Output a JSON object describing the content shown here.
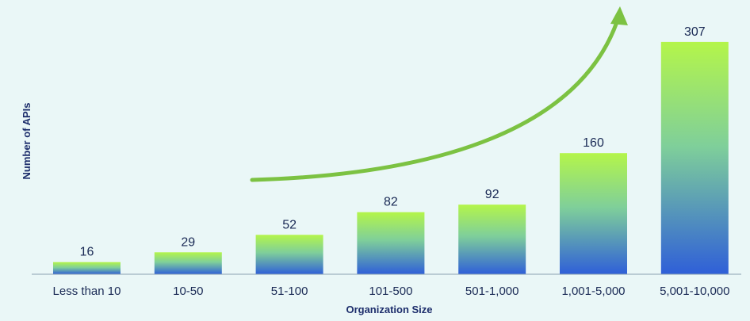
{
  "chart_data": {
    "type": "bar",
    "categories": [
      "Less than 10",
      "10-50",
      "51-100",
      "101-500",
      "501-1,000",
      "1,001-5,000",
      "5,001-10,000"
    ],
    "values": [
      16,
      29,
      52,
      82,
      92,
      160,
      307
    ],
    "xlabel": "Organization Size",
    "ylabel": "Number of  APIs",
    "ylim": [
      0,
      310
    ],
    "grid": false,
    "legend": "none",
    "annotations": [
      "upward-trend-arrow"
    ],
    "colors": {
      "background": "#eaf7f7",
      "bar_top": "#b4f54a",
      "bar_bottom": "#2f5fd8",
      "arrow": "#7cc242",
      "text": "#1a2a55",
      "axis_title": "#1c2d6b",
      "baseline": "#8aa2b0"
    }
  }
}
